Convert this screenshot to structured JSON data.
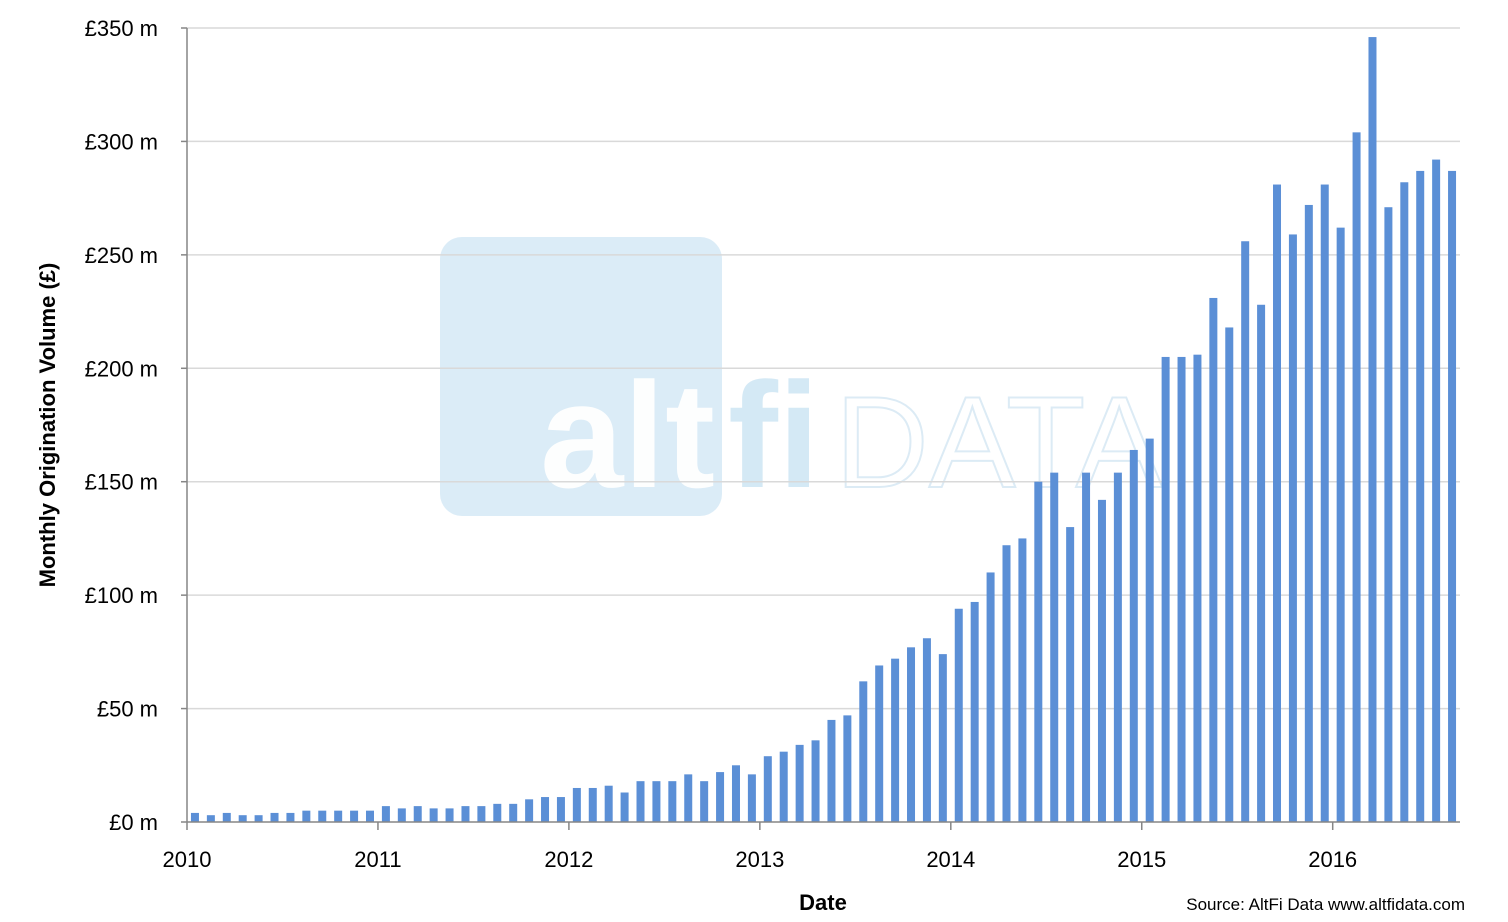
{
  "colors": {
    "bar": "#5B8FD6",
    "grid": "#D9D9D9",
    "axis": "#868686",
    "watermark_box": "#C3E0F1",
    "watermark_text": "#FFFFFF",
    "watermark_faint": "#DCEBF5"
  },
  "watermark": {
    "logo_left": "alt",
    "logo_mid": "fi",
    "logo_right": "DATA"
  },
  "source_note": "Source: AltFi Data www.altfidata.com",
  "chart_data": {
    "type": "bar",
    "xlabel": "Date",
    "ylabel": "Monthly Origination Volume (£)",
    "ylim": [
      0,
      350
    ],
    "y_ticks": [
      0,
      50,
      100,
      150,
      200,
      250,
      300,
      350
    ],
    "y_tick_labels": [
      "£0 m",
      "£50 m",
      "£100 m",
      "£150 m",
      "£200 m",
      "£250 m",
      "£300 m",
      "£350 m"
    ],
    "x_tick_labels": [
      "2010",
      "2011",
      "2012",
      "2013",
      "2014",
      "2015",
      "2016"
    ],
    "grid": true,
    "legend": "none",
    "start": "2010-01",
    "values": [
      4,
      3,
      4,
      3,
      3,
      4,
      4,
      5,
      5,
      5,
      5,
      5,
      7,
      6,
      7,
      6,
      6,
      7,
      7,
      8,
      8,
      10,
      11,
      11,
      15,
      15,
      16,
      13,
      18,
      18,
      18,
      21,
      18,
      22,
      25,
      21,
      29,
      31,
      34,
      36,
      45,
      47,
      62,
      69,
      72,
      77,
      81,
      74,
      94,
      97,
      110,
      122,
      125,
      150,
      154,
      130,
      154,
      142,
      154,
      164,
      169,
      205,
      205,
      206,
      231,
      218,
      256,
      228,
      281,
      259,
      272,
      281,
      262,
      304,
      346,
      271,
      282,
      287,
      292,
      287
    ]
  }
}
